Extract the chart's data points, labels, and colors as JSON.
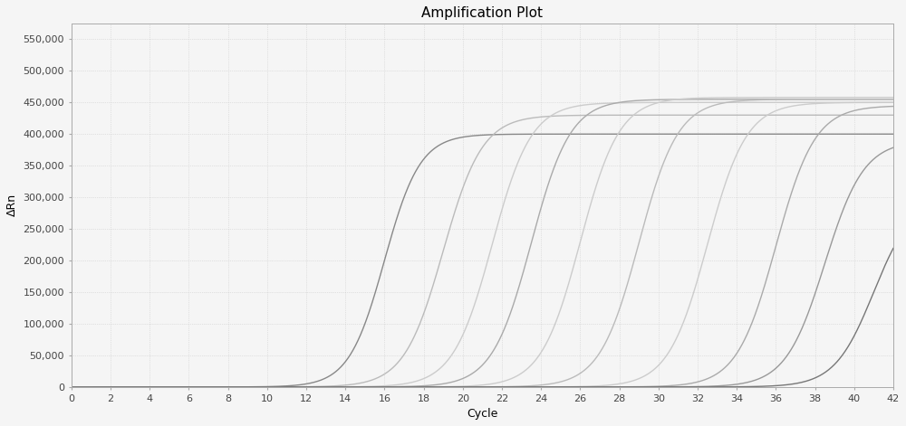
{
  "title": "Amplification Plot",
  "xlabel": "Cycle",
  "ylabel": "ΔRn",
  "xlim": [
    0,
    42
  ],
  "ylim": [
    0,
    575000
  ],
  "yticks": [
    0,
    50000,
    100000,
    150000,
    200000,
    250000,
    300000,
    350000,
    400000,
    450000,
    500000,
    550000
  ],
  "ytick_labels": [
    "0",
    "50,000",
    "100,000",
    "150,000",
    "200,000",
    "250,000",
    "300,000",
    "350,000",
    "400,000",
    "450,000",
    "500,000",
    "550,000"
  ],
  "xticks": [
    0,
    2,
    4,
    6,
    8,
    10,
    12,
    14,
    16,
    18,
    20,
    22,
    24,
    26,
    28,
    30,
    32,
    34,
    36,
    38,
    40,
    42
  ],
  "background_color": "#f5f5f5",
  "grid_color": "#cccccc",
  "curves": [
    {
      "midpoint": 16.0,
      "plateau": 400000,
      "steepness": 1.1,
      "color": "#888888",
      "lw": 1.0
    },
    {
      "midpoint": 19.0,
      "plateau": 430000,
      "steepness": 1.0,
      "color": "#bbbbbb",
      "lw": 1.0
    },
    {
      "midpoint": 21.5,
      "plateau": 450000,
      "steepness": 1.0,
      "color": "#cccccc",
      "lw": 1.0
    },
    {
      "midpoint": 23.5,
      "plateau": 455000,
      "steepness": 1.0,
      "color": "#aaaaaa",
      "lw": 1.0
    },
    {
      "midpoint": 26.0,
      "plateau": 458000,
      "steepness": 1.0,
      "color": "#cccccc",
      "lw": 1.0
    },
    {
      "midpoint": 29.0,
      "plateau": 455000,
      "steepness": 1.0,
      "color": "#bbbbbb",
      "lw": 1.0
    },
    {
      "midpoint": 32.5,
      "plateau": 450000,
      "steepness": 1.0,
      "color": "#cccccc",
      "lw": 1.0
    },
    {
      "midpoint": 36.0,
      "plateau": 445000,
      "steepness": 1.0,
      "color": "#aaaaaa",
      "lw": 1.0
    },
    {
      "midpoint": 38.5,
      "plateau": 390000,
      "steepness": 1.0,
      "color": "#999999",
      "lw": 1.0
    },
    {
      "midpoint": 41.0,
      "plateau": 300000,
      "steepness": 1.0,
      "color": "#777777",
      "lw": 1.0
    }
  ],
  "figsize": [
    10.0,
    4.71
  ],
  "dpi": 100
}
